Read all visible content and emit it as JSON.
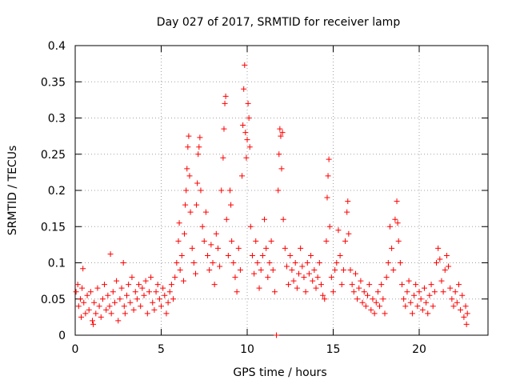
{
  "chart_data": {
    "type": "scatter",
    "title": "Day 027 of 2017, SRMTID for receiver lamp",
    "xlabel": "GPS time / hours",
    "ylabel": "SRMTID / TECUs",
    "xlim": [
      0,
      24
    ],
    "ylim": [
      0,
      0.4
    ],
    "grid": true,
    "marker": "+",
    "series": [
      {
        "name": "SRMTID",
        "color": "#ff0000",
        "points": [
          [
            0.05,
            0.06
          ],
          [
            0.15,
            0.07
          ],
          [
            0.2,
            0.04
          ],
          [
            0.3,
            0.05
          ],
          [
            0.35,
            0.025
          ],
          [
            0.4,
            0.065
          ],
          [
            0.45,
            0.092
          ],
          [
            0.5,
            0.045
          ],
          [
            0.6,
            0.03
          ],
          [
            0.7,
            0.055
          ],
          [
            0.8,
            0.035
          ],
          [
            0.9,
            0.06
          ],
          [
            1.0,
            0.02
          ],
          [
            1.05,
            0.015
          ],
          [
            1.1,
            0.045
          ],
          [
            1.2,
            0.03
          ],
          [
            1.3,
            0.065
          ],
          [
            1.4,
            0.04
          ],
          [
            1.5,
            0.025
          ],
          [
            1.6,
            0.05
          ],
          [
            1.7,
            0.07
          ],
          [
            1.8,
            0.035
          ],
          [
            1.9,
            0.055
          ],
          [
            2.0,
            0.04
          ],
          [
            2.05,
            0.112
          ],
          [
            2.1,
            0.03
          ],
          [
            2.2,
            0.06
          ],
          [
            2.3,
            0.045
          ],
          [
            2.4,
            0.075
          ],
          [
            2.5,
            0.02
          ],
          [
            2.6,
            0.05
          ],
          [
            2.7,
            0.065
          ],
          [
            2.8,
            0.1
          ],
          [
            2.85,
            0.04
          ],
          [
            2.9,
            0.03
          ],
          [
            3.0,
            0.055
          ],
          [
            3.1,
            0.07
          ],
          [
            3.2,
            0.045
          ],
          [
            3.3,
            0.08
          ],
          [
            3.4,
            0.035
          ],
          [
            3.5,
            0.06
          ],
          [
            3.6,
            0.05
          ],
          [
            3.7,
            0.07
          ],
          [
            3.8,
            0.04
          ],
          [
            3.9,
            0.065
          ],
          [
            4.0,
            0.055
          ],
          [
            4.1,
            0.075
          ],
          [
            4.2,
            0.03
          ],
          [
            4.3,
            0.06
          ],
          [
            4.4,
            0.08
          ],
          [
            4.5,
            0.045
          ],
          [
            4.6,
            0.035
          ],
          [
            4.7,
            0.06
          ],
          [
            4.8,
            0.07
          ],
          [
            4.9,
            0.05
          ],
          [
            5.0,
            0.04
          ],
          [
            5.1,
            0.065
          ],
          [
            5.2,
            0.055
          ],
          [
            5.3,
            0.03
          ],
          [
            5.4,
            0.045
          ],
          [
            5.5,
            0.06
          ],
          [
            5.6,
            0.07
          ],
          [
            5.7,
            0.05
          ],
          [
            5.8,
            0.08
          ],
          [
            5.9,
            0.1
          ],
          [
            6.0,
            0.13
          ],
          [
            6.05,
            0.155
          ],
          [
            6.1,
            0.09
          ],
          [
            6.2,
            0.11
          ],
          [
            6.3,
            0.075
          ],
          [
            6.35,
            0.14
          ],
          [
            6.4,
            0.18
          ],
          [
            6.45,
            0.2
          ],
          [
            6.5,
            0.23
          ],
          [
            6.55,
            0.26
          ],
          [
            6.6,
            0.275
          ],
          [
            6.65,
            0.22
          ],
          [
            6.7,
            0.17
          ],
          [
            6.8,
            0.12
          ],
          [
            6.9,
            0.1
          ],
          [
            7.0,
            0.085
          ],
          [
            7.05,
            0.18
          ],
          [
            7.1,
            0.21
          ],
          [
            7.15,
            0.25
          ],
          [
            7.2,
            0.26
          ],
          [
            7.25,
            0.273
          ],
          [
            7.3,
            0.2
          ],
          [
            7.4,
            0.15
          ],
          [
            7.5,
            0.13
          ],
          [
            7.6,
            0.17
          ],
          [
            7.7,
            0.11
          ],
          [
            7.8,
            0.09
          ],
          [
            7.9,
            0.125
          ],
          [
            8.0,
            0.1
          ],
          [
            8.1,
            0.07
          ],
          [
            8.2,
            0.14
          ],
          [
            8.3,
            0.12
          ],
          [
            8.4,
            0.095
          ],
          [
            8.5,
            0.2
          ],
          [
            8.6,
            0.245
          ],
          [
            8.65,
            0.285
          ],
          [
            8.7,
            0.32
          ],
          [
            8.75,
            0.33
          ],
          [
            8.8,
            0.16
          ],
          [
            8.9,
            0.11
          ],
          [
            9.0,
            0.2
          ],
          [
            9.05,
            0.18
          ],
          [
            9.1,
            0.13
          ],
          [
            9.2,
            0.1
          ],
          [
            9.3,
            0.08
          ],
          [
            9.4,
            0.06
          ],
          [
            9.5,
            0.12
          ],
          [
            9.6,
            0.09
          ],
          [
            9.7,
            0.22
          ],
          [
            9.75,
            0.29
          ],
          [
            9.8,
            0.34
          ],
          [
            9.85,
            0.373
          ],
          [
            9.9,
            0.28
          ],
          [
            9.95,
            0.245
          ],
          [
            10.0,
            0.27
          ],
          [
            10.05,
            0.32
          ],
          [
            10.1,
            0.3
          ],
          [
            10.15,
            0.26
          ],
          [
            10.2,
            0.15
          ],
          [
            10.3,
            0.11
          ],
          [
            10.4,
            0.085
          ],
          [
            10.5,
            0.13
          ],
          [
            10.6,
            0.1
          ],
          [
            10.7,
            0.065
          ],
          [
            10.8,
            0.09
          ],
          [
            10.9,
            0.11
          ],
          [
            11.0,
            0.16
          ],
          [
            11.1,
            0.12
          ],
          [
            11.2,
            0.08
          ],
          [
            11.3,
            0.1
          ],
          [
            11.4,
            0.13
          ],
          [
            11.5,
            0.09
          ],
          [
            11.6,
            0.06
          ],
          [
            11.7,
            0.0
          ],
          [
            11.8,
            0.2
          ],
          [
            11.85,
            0.25
          ],
          [
            11.9,
            0.285
          ],
          [
            11.95,
            0.275
          ],
          [
            12.0,
            0.23
          ],
          [
            12.05,
            0.28
          ],
          [
            12.1,
            0.16
          ],
          [
            12.2,
            0.12
          ],
          [
            12.3,
            0.095
          ],
          [
            12.4,
            0.07
          ],
          [
            12.5,
            0.11
          ],
          [
            12.6,
            0.09
          ],
          [
            12.7,
            0.075
          ],
          [
            12.8,
            0.1
          ],
          [
            12.9,
            0.065
          ],
          [
            13.0,
            0.085
          ],
          [
            13.1,
            0.12
          ],
          [
            13.2,
            0.095
          ],
          [
            13.3,
            0.08
          ],
          [
            13.4,
            0.06
          ],
          [
            13.5,
            0.1
          ],
          [
            13.6,
            0.085
          ],
          [
            13.7,
            0.11
          ],
          [
            13.8,
            0.075
          ],
          [
            13.9,
            0.09
          ],
          [
            14.0,
            0.065
          ],
          [
            14.1,
            0.08
          ],
          [
            14.2,
            0.1
          ],
          [
            14.3,
            0.07
          ],
          [
            14.4,
            0.055
          ],
          [
            14.5,
            0.05
          ],
          [
            14.6,
            0.13
          ],
          [
            14.65,
            0.19
          ],
          [
            14.7,
            0.22
          ],
          [
            14.75,
            0.243
          ],
          [
            14.8,
            0.15
          ],
          [
            14.9,
            0.08
          ],
          [
            15.0,
            0.06
          ],
          [
            15.1,
            0.09
          ],
          [
            15.2,
            0.1
          ],
          [
            15.3,
            0.145
          ],
          [
            15.4,
            0.11
          ],
          [
            15.5,
            0.07
          ],
          [
            15.6,
            0.09
          ],
          [
            15.7,
            0.13
          ],
          [
            15.8,
            0.17
          ],
          [
            15.85,
            0.185
          ],
          [
            15.9,
            0.14
          ],
          [
            16.0,
            0.09
          ],
          [
            16.1,
            0.07
          ],
          [
            16.2,
            0.06
          ],
          [
            16.3,
            0.085
          ],
          [
            16.4,
            0.05
          ],
          [
            16.5,
            0.065
          ],
          [
            16.6,
            0.075
          ],
          [
            16.7,
            0.045
          ],
          [
            16.8,
            0.06
          ],
          [
            16.9,
            0.04
          ],
          [
            17.0,
            0.055
          ],
          [
            17.1,
            0.07
          ],
          [
            17.2,
            0.035
          ],
          [
            17.3,
            0.05
          ],
          [
            17.4,
            0.03
          ],
          [
            17.5,
            0.045
          ],
          [
            17.6,
            0.06
          ],
          [
            17.7,
            0.04
          ],
          [
            17.8,
            0.07
          ],
          [
            17.9,
            0.05
          ],
          [
            18.0,
            0.03
          ],
          [
            18.1,
            0.08
          ],
          [
            18.2,
            0.1
          ],
          [
            18.3,
            0.15
          ],
          [
            18.4,
            0.12
          ],
          [
            18.5,
            0.09
          ],
          [
            18.6,
            0.16
          ],
          [
            18.7,
            0.185
          ],
          [
            18.75,
            0.155
          ],
          [
            18.8,
            0.13
          ],
          [
            18.9,
            0.1
          ],
          [
            19.0,
            0.07
          ],
          [
            19.1,
            0.05
          ],
          [
            19.2,
            0.04
          ],
          [
            19.3,
            0.06
          ],
          [
            19.4,
            0.075
          ],
          [
            19.5,
            0.045
          ],
          [
            19.6,
            0.03
          ],
          [
            19.7,
            0.055
          ],
          [
            19.8,
            0.07
          ],
          [
            19.9,
            0.04
          ],
          [
            20.0,
            0.06
          ],
          [
            20.1,
            0.05
          ],
          [
            20.2,
            0.035
          ],
          [
            20.3,
            0.065
          ],
          [
            20.4,
            0.045
          ],
          [
            20.5,
            0.03
          ],
          [
            20.6,
            0.055
          ],
          [
            20.7,
            0.07
          ],
          [
            20.8,
            0.04
          ],
          [
            20.9,
            0.06
          ],
          [
            21.0,
            0.1
          ],
          [
            21.1,
            0.12
          ],
          [
            21.2,
            0.105
          ],
          [
            21.3,
            0.075
          ],
          [
            21.4,
            0.06
          ],
          [
            21.5,
            0.09
          ],
          [
            21.6,
            0.11
          ],
          [
            21.7,
            0.095
          ],
          [
            21.8,
            0.065
          ],
          [
            21.9,
            0.05
          ],
          [
            22.0,
            0.04
          ],
          [
            22.1,
            0.06
          ],
          [
            22.2,
            0.045
          ],
          [
            22.3,
            0.07
          ],
          [
            22.4,
            0.035
          ],
          [
            22.5,
            0.055
          ],
          [
            22.6,
            0.025
          ],
          [
            22.7,
            0.04
          ],
          [
            22.75,
            0.015
          ],
          [
            22.8,
            0.03
          ]
        ]
      }
    ],
    "xticks": [
      "0",
      "5",
      "10",
      "15",
      "20"
    ],
    "yticks": [
      "0",
      "0.05",
      "0.1",
      "0.15",
      "0.2",
      "0.25",
      "0.3",
      "0.35",
      "0.4"
    ]
  }
}
